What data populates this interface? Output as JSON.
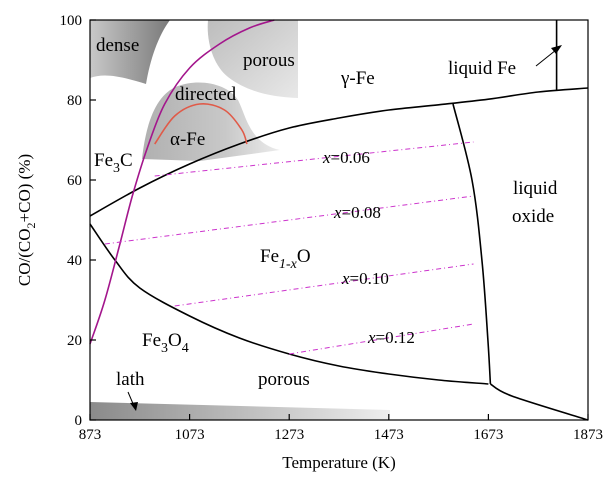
{
  "chart_data": {
    "type": "line",
    "title": "",
    "xlabel": "Temperature (K)",
    "ylabel_parts": [
      "CO/(CO",
      "2",
      "+CO) (%)"
    ],
    "xlim": [
      873,
      1873
    ],
    "ylim": [
      0,
      100
    ],
    "xticks": [
      873,
      1073,
      1273,
      1473,
      1673,
      1873
    ],
    "yticks": [
      0,
      20,
      40,
      60,
      80,
      100
    ],
    "grid": false,
    "series": [
      {
        "key": "fe3o4_feo_boundary",
        "color": "#000000",
        "points": [
          [
            873,
            49
          ],
          [
            923,
            40
          ],
          [
            973,
            33
          ],
          [
            1073,
            26
          ],
          [
            1173,
            20.5
          ],
          [
            1273,
            16.5
          ],
          [
            1373,
            13.5
          ],
          [
            1473,
            11.5
          ],
          [
            1573,
            10
          ],
          [
            1673,
            9
          ]
        ]
      },
      {
        "key": "feo_fe_boundary",
        "color": "#000000",
        "points": [
          [
            873,
            51
          ],
          [
            973,
            58
          ],
          [
            1073,
            64
          ],
          [
            1173,
            69
          ],
          [
            1273,
            73
          ],
          [
            1373,
            75.5
          ],
          [
            1473,
            77.5
          ],
          [
            1573,
            78.8
          ],
          [
            1673,
            80.2
          ],
          [
            1773,
            82
          ],
          [
            1873,
            83
          ]
        ]
      },
      {
        "key": "liquid_oxide_left_boundary",
        "color": "#000000",
        "points": [
          [
            1602,
            79
          ],
          [
            1640,
            60
          ],
          [
            1660,
            40
          ],
          [
            1672,
            20
          ],
          [
            1677,
            9
          ]
        ]
      },
      {
        "key": "liquid_oxide_lower_boundary",
        "color": "#000000",
        "points": [
          [
            1677,
            9
          ],
          [
            1720,
            6
          ],
          [
            1873,
            0
          ]
        ]
      },
      {
        "key": "liquid_fe_boundary",
        "color": "#000000",
        "points": [
          [
            1810,
            82.3
          ],
          [
            1810,
            100
          ]
        ]
      },
      {
        "key": "magenta_curve",
        "color": "#a3168c",
        "points": [
          [
            873,
            19
          ],
          [
            903,
            30
          ],
          [
            933,
            44
          ],
          [
            958,
            56
          ],
          [
            988,
            68
          ],
          [
            1023,
            79
          ],
          [
            1073,
            88
          ],
          [
            1133,
            94
          ],
          [
            1193,
            98
          ],
          [
            1243,
            100
          ]
        ]
      },
      {
        "key": "red_alpha_fe_boundary",
        "color": "#e05a48",
        "points": [
          [
            1003,
            69
          ],
          [
            1043,
            76
          ],
          [
            1093,
            79
          ],
          [
            1143,
            77.5
          ],
          [
            1178,
            72.5
          ],
          [
            1188,
            69
          ]
        ]
      },
      {
        "key": "isoline_x_0.06",
        "color": "#cc33cc",
        "dashed": true,
        "points": [
          [
            1003,
            61
          ],
          [
            1643,
            69.5
          ]
        ]
      },
      {
        "key": "isoline_x_0.08",
        "color": "#cc33cc",
        "dashed": true,
        "points": [
          [
            903,
            44
          ],
          [
            1643,
            56
          ]
        ]
      },
      {
        "key": "isoline_x_0.10",
        "color": "#cc33cc",
        "dashed": true,
        "points": [
          [
            1043,
            28.5
          ],
          [
            1643,
            39
          ]
        ]
      },
      {
        "key": "isoline_x_0.12",
        "color": "#cc33cc",
        "dashed": true,
        "points": [
          [
            1273,
            16.5
          ],
          [
            1643,
            24
          ]
        ]
      }
    ],
    "region_labels": {
      "dense": "dense",
      "porous_top": "porous",
      "gamma_fe": "γ-Fe",
      "liquid_fe": "liquid Fe",
      "directed": "directed",
      "alpha_fe": "α-Fe",
      "fe3c_main": "Fe",
      "fe3c_sub": "3",
      "fe3c_tail": "C",
      "liquid_oxide_1": "liquid",
      "liquid_oxide_2": "oxide",
      "fe1xo_main": "Fe",
      "fe1xo_sub": "1-x",
      "fe1xo_tail": "O",
      "fe3o4_main": "Fe",
      "fe3o4_sub1": "3",
      "fe3o4_mid": "O",
      "fe3o4_sub2": "4",
      "porous_bottom": "porous",
      "lath": "lath"
    },
    "isoline_labels": [
      {
        "var": "x",
        "value": "=0.06"
      },
      {
        "var": "x",
        "value": "=0.08"
      },
      {
        "var": "x",
        "value": "=0.10"
      },
      {
        "var": "x",
        "value": "=0.12"
      }
    ]
  }
}
